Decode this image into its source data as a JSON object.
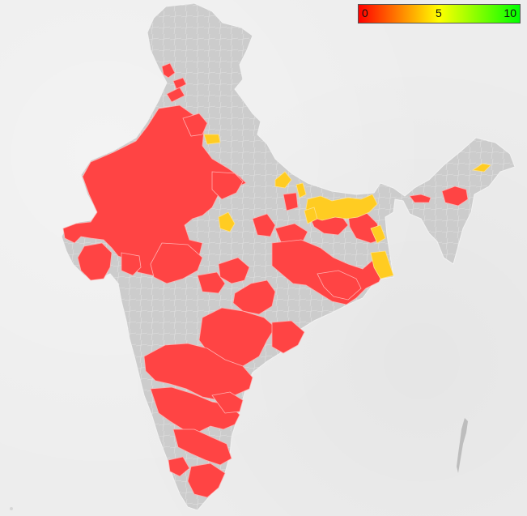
{
  "legend": {
    "min_label": "0",
    "mid_label": "5",
    "max_label": "10",
    "colors": [
      "#ff0000",
      "#ff8000",
      "#ffff00",
      "#80ff00",
      "#00ff00"
    ]
  },
  "map": {
    "region": "India districts",
    "base_color": "#cccccc",
    "border_color": "#f0f0f0",
    "high_color": "#ff4444",
    "mid_color": "#ffcc22"
  }
}
